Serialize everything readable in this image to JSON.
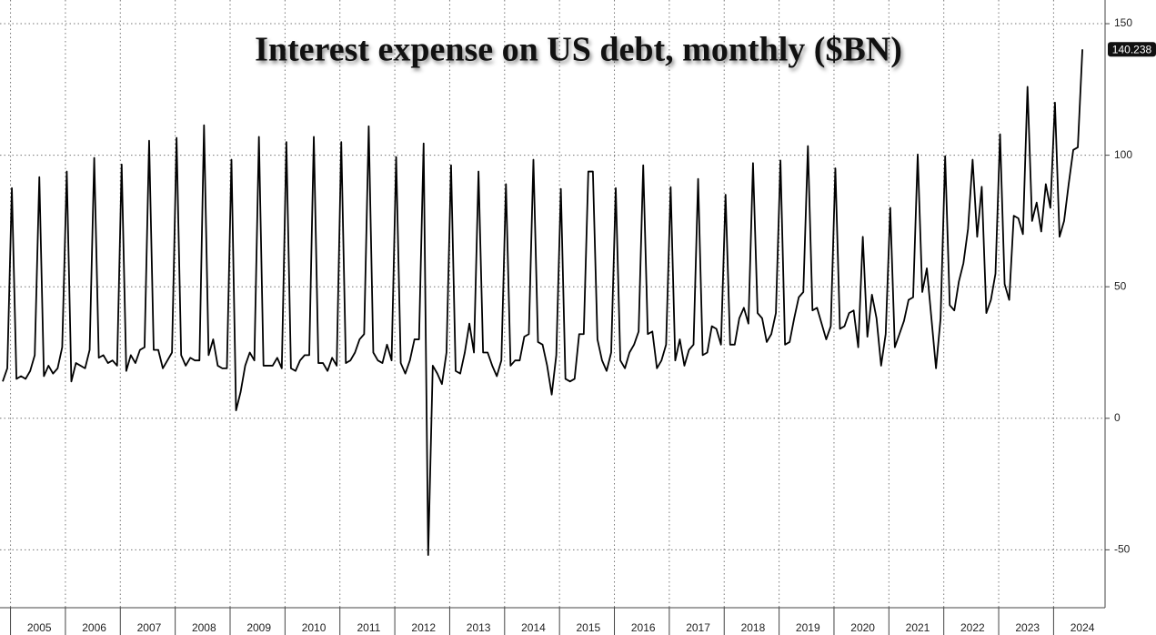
{
  "chart_data": {
    "type": "line",
    "title": "Interest expense on US debt, monthly ($BN)",
    "categories": [
      null,
      null,
      null,
      null,
      null,
      null,
      null,
      null,
      "2005",
      null,
      null,
      null,
      null,
      null,
      null,
      null,
      null,
      null,
      null,
      null,
      "2006",
      null,
      null,
      null,
      null,
      null,
      null,
      null,
      null,
      null,
      null,
      null,
      "2007",
      null,
      null,
      null,
      null,
      null,
      null,
      null,
      null,
      null,
      null,
      null,
      "2008",
      null,
      null,
      null,
      null,
      null,
      null,
      null,
      null,
      null,
      null,
      null,
      "2009",
      null,
      null,
      null,
      null,
      null,
      null,
      null,
      null,
      null,
      null,
      null,
      "2010",
      null,
      null,
      null,
      null,
      null,
      null,
      null,
      null,
      null,
      null,
      null,
      "2011",
      null,
      null,
      null,
      null,
      null,
      null,
      null,
      null,
      null,
      null,
      null,
      "2012",
      null,
      null,
      null,
      null,
      null,
      null,
      null,
      null,
      null,
      null,
      null,
      "2013",
      null,
      null,
      null,
      null,
      null,
      null,
      null,
      null,
      null,
      null,
      null,
      "2014",
      null,
      null,
      null,
      null,
      null,
      null,
      null,
      null,
      null,
      null,
      null,
      "2015",
      null,
      null,
      null,
      null,
      null,
      null,
      null,
      null,
      null,
      null,
      null,
      "2016",
      null,
      null,
      null,
      null,
      null,
      null,
      null,
      null,
      null,
      null,
      null,
      "2017",
      null,
      null,
      null,
      null,
      null,
      null,
      null,
      null,
      null,
      null,
      null,
      "2018",
      null,
      null,
      null,
      null,
      null,
      null,
      null,
      null,
      null,
      null,
      null,
      "2019",
      null,
      null,
      null,
      null,
      null,
      null,
      null,
      null,
      null,
      null,
      null,
      "2020",
      null,
      null,
      null,
      null,
      null,
      null,
      null,
      null,
      null,
      null,
      null,
      "2021",
      null,
      null,
      null,
      null,
      null,
      null,
      null,
      null,
      null,
      null,
      null,
      "2022",
      null,
      null,
      null,
      null,
      null,
      null,
      null,
      null,
      null,
      null,
      null,
      "2023",
      null,
      null,
      null,
      null,
      null,
      null,
      null,
      null,
      null,
      null,
      null,
      "2024"
    ],
    "values": [
      14,
      19,
      87.5,
      15,
      16,
      15,
      18,
      24,
      91.7,
      16,
      20,
      17,
      19,
      27,
      93.8,
      14,
      21,
      20,
      19,
      26,
      99,
      23,
      24,
      21,
      22,
      20,
      96.5,
      18,
      24,
      21,
      26,
      27,
      105.5,
      26,
      26,
      19,
      22,
      25,
      106.6,
      24,
      20,
      23,
      22,
      22,
      111.4,
      24,
      30,
      20,
      19,
      19,
      98.3,
      3,
      10,
      20,
      25,
      22,
      107,
      20,
      20,
      20,
      23,
      19,
      105,
      19,
      18,
      22,
      24,
      24,
      107,
      21,
      21,
      18,
      23,
      20,
      105,
      21,
      22,
      25,
      30,
      32,
      111,
      25,
      22,
      21,
      28,
      22,
      99.3,
      21,
      17,
      22,
      30,
      30,
      104.5,
      -52,
      20,
      17,
      13,
      25,
      96.2,
      18,
      17,
      25,
      36,
      25,
      93.8,
      25,
      25,
      20,
      16,
      22,
      89,
      20,
      22,
      22,
      31,
      32,
      98.3,
      29,
      28,
      20,
      9,
      24,
      87.2,
      15,
      14,
      15,
      32,
      32,
      93.8,
      93.8,
      30,
      22,
      18,
      25,
      87.5,
      22,
      19,
      25,
      28,
      33,
      96.2,
      32,
      33,
      19,
      22,
      28,
      87.9,
      22,
      30,
      20,
      26,
      28,
      91,
      24,
      25,
      35,
      34,
      28,
      85,
      28,
      28,
      38,
      42,
      36,
      97,
      40,
      38,
      29,
      32,
      40,
      98,
      28,
      29,
      38,
      46,
      48,
      103.5,
      41,
      42,
      36,
      30,
      35,
      95,
      34,
      35,
      40,
      41,
      27,
      69,
      31,
      47,
      38,
      20,
      32,
      80,
      27,
      32,
      37,
      45,
      46,
      100.3,
      48,
      57,
      38,
      19,
      38,
      99.6,
      43,
      41,
      52,
      59,
      72,
      98.3,
      69,
      88,
      40,
      45,
      55,
      108,
      51,
      45,
      77,
      76,
      70,
      126,
      75,
      82,
      71,
      89,
      80,
      120,
      69,
      75,
      89,
      102,
      103,
      140.238
    ],
    "color": "#000000",
    "ylim": [
      -72,
      159
    ],
    "yticks": [
      150,
      100,
      50,
      0,
      -50
    ],
    "grid": true
  }
}
